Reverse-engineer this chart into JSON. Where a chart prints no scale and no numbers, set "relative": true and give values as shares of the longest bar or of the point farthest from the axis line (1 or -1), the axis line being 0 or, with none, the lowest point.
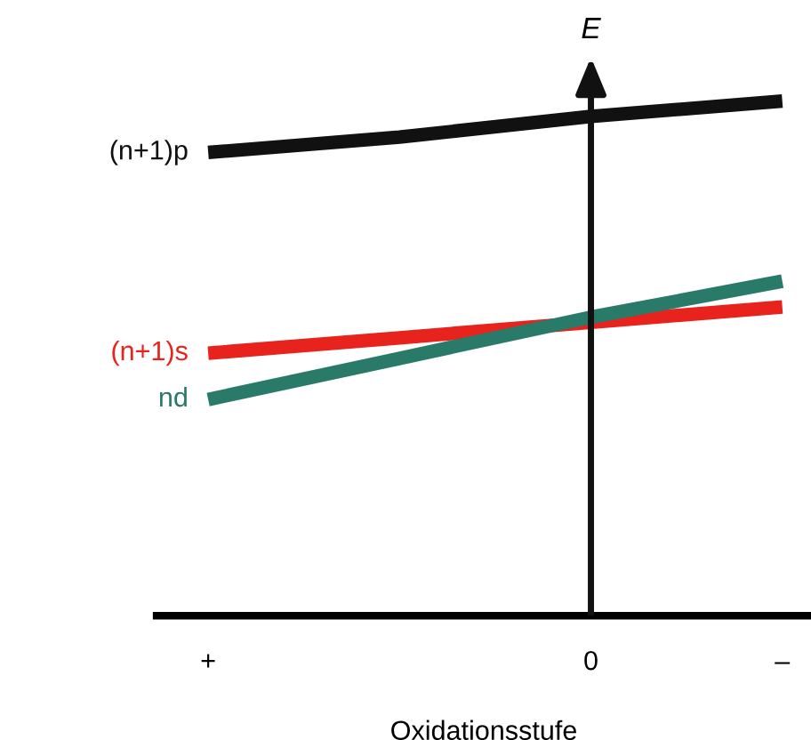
{
  "chart_data": {
    "type": "line",
    "relative": true,
    "xlabel": "Oxidationsstufe",
    "ylabel": "E",
    "categories": [
      "+",
      null,
      "0",
      "–"
    ],
    "series": [
      {
        "name": "(n+1)p",
        "color": "#111111",
        "values": [
          0.9,
          0.93,
          0.97,
          1.0
        ]
      },
      {
        "name": "(n+1)s",
        "color": "#e8221c",
        "values": [
          0.51,
          0.54,
          0.57,
          0.6
        ]
      },
      {
        "name": "nd",
        "color": "#2a7a6a",
        "values": [
          0.42,
          0.5,
          0.58,
          0.65
        ]
      }
    ],
    "ref_lines": [
      {
        "axis": "x",
        "value": "0",
        "color": "#111111",
        "line_style": "solid"
      }
    ],
    "grid": false,
    "legend": false,
    "marker": "none",
    "line_style": "solid"
  }
}
